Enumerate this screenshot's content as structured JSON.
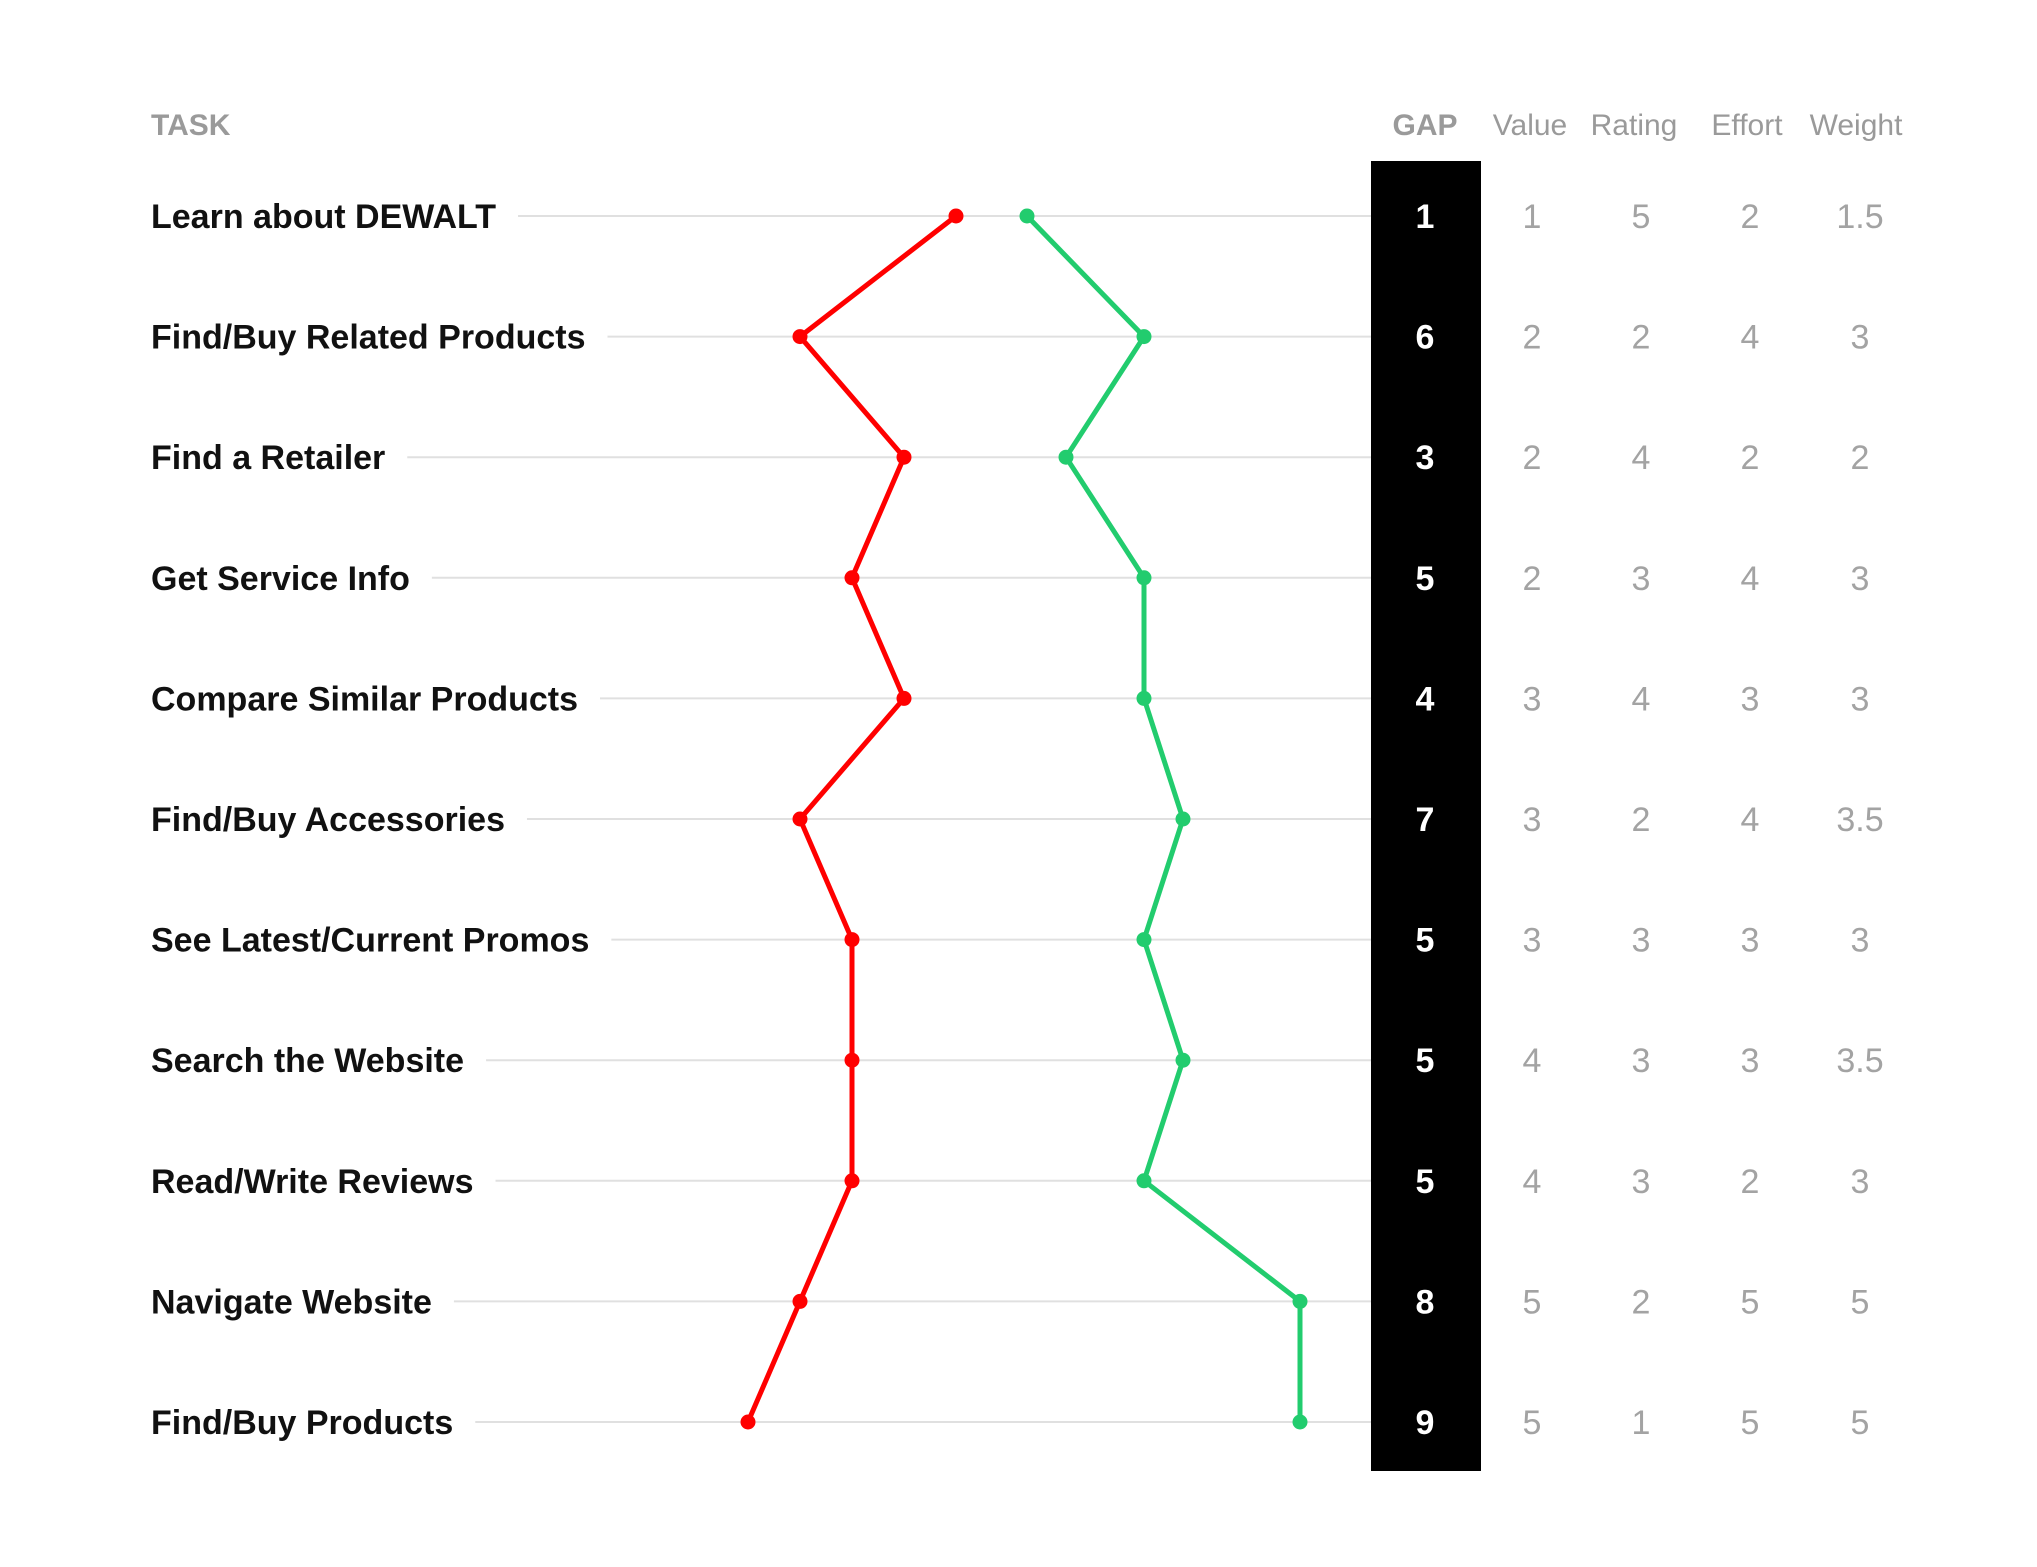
{
  "chart_data": {
    "type": "line",
    "header": {
      "task": "TASK",
      "gap": "GAP",
      "value": "Value",
      "rating": "Rating",
      "effort": "Effort",
      "weight": "Weight"
    },
    "rows": [
      {
        "task": "Learn about DEWALT",
        "gap": "1",
        "value": "1",
        "rating": "5",
        "effort": "2",
        "weight": "1.5"
      },
      {
        "task": "Find/Buy Related Products",
        "gap": "6",
        "value": "2",
        "rating": "2",
        "effort": "4",
        "weight": "3"
      },
      {
        "task": "Find a Retailer",
        "gap": "3",
        "value": "2",
        "rating": "4",
        "effort": "2",
        "weight": "2"
      },
      {
        "task": "Get Service Info",
        "gap": "5",
        "value": "2",
        "rating": "3",
        "effort": "4",
        "weight": "3"
      },
      {
        "task": "Compare Similar Products",
        "gap": "4",
        "value": "3",
        "rating": "4",
        "effort": "3",
        "weight": "3"
      },
      {
        "task": "Find/Buy Accessories",
        "gap": "7",
        "value": "3",
        "rating": "2",
        "effort": "4",
        "weight": "3.5"
      },
      {
        "task": "See Latest/Current Promos",
        "gap": "5",
        "value": "3",
        "rating": "3",
        "effort": "3",
        "weight": "3"
      },
      {
        "task": "Search the Website",
        "gap": "5",
        "value": "4",
        "rating": "3",
        "effort": "3",
        "weight": "3.5"
      },
      {
        "task": "Read/Write Reviews",
        "gap": "5",
        "value": "4",
        "rating": "3",
        "effort": "2",
        "weight": "3"
      },
      {
        "task": "Navigate Website",
        "gap": "8",
        "value": "5",
        "rating": "2",
        "effort": "5",
        "weight": "5"
      },
      {
        "task": "Find/Buy Products",
        "gap": "9",
        "value": "5",
        "rating": "1",
        "effort": "5",
        "weight": "5"
      }
    ],
    "series": [
      {
        "color": "#ff0000",
        "values": [
          5,
          2,
          4,
          3,
          4,
          2,
          3,
          3,
          3,
          2,
          1
        ]
      },
      {
        "color": "#22cc6e",
        "values": [
          1.5,
          3,
          2,
          3,
          3,
          3.5,
          3,
          3.5,
          3,
          5,
          5
        ]
      }
    ],
    "rating_axis_range": [
      5,
      1
    ],
    "weight_axis_range": [
      1.5,
      5
    ],
    "colors": {
      "gap_column": "#000000",
      "row_line": "#e0e0e0"
    }
  }
}
